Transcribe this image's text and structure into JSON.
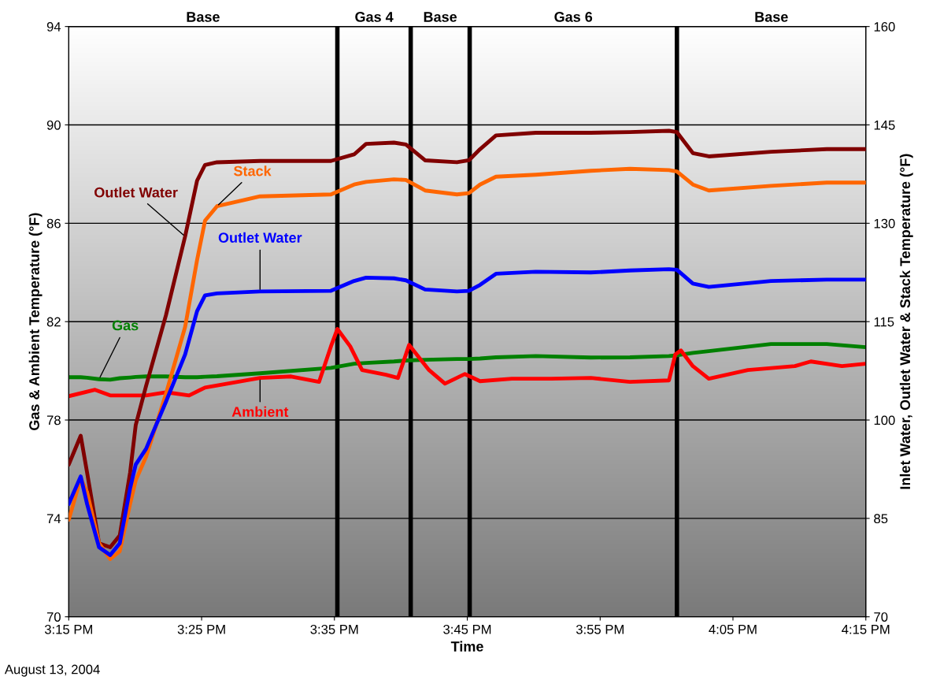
{
  "chart_data": {
    "type": "line",
    "xlabel": "Time",
    "ylabel": "Gas & Ambient Temperature (°F)",
    "y2label": "Inlet Water, Outlet Water & Stack Temperature (°F)",
    "x": [
      15.25,
      15.265,
      15.273,
      15.288,
      15.302,
      15.314,
      15.327,
      15.334,
      15.347,
      15.372,
      15.396,
      15.411,
      15.421,
      15.436,
      15.49,
      15.579,
      15.608,
      15.623,
      15.658,
      15.673,
      15.697,
      15.737,
      15.752,
      15.766,
      15.786,
      15.836,
      15.905,
      15.954,
      16.003,
      16.013,
      16.033,
      16.053,
      16.131,
      16.201,
      16.25
    ],
    "series": [
      {
        "name": "Outlet Water",
        "color": "#800000",
        "axis": "y2",
        "values": [
          93.2,
          97.6,
          92.0,
          81.2,
          80.6,
          82.4,
          92,
          99.2,
          105.2,
          116,
          128,
          136.5,
          138.9,
          139.3,
          139.5,
          139.5,
          140.5,
          142.1,
          142.3,
          142,
          139.6,
          139.3,
          139.6,
          141.3,
          143.4,
          143.8,
          143.8,
          143.9,
          144.1,
          143.9,
          140.7,
          140.2,
          140.9,
          141.3,
          141.3
        ]
      },
      {
        "name": "Stack",
        "color": "#ff6600",
        "axis": "y2",
        "values": [
          84.8,
          91.1,
          89.0,
          81.2,
          78.8,
          80.0,
          87.2,
          90.8,
          94.4,
          104,
          114.2,
          124.4,
          130.4,
          132.6,
          134.1,
          134.4,
          135.9,
          136.3,
          136.7,
          136.6,
          135,
          134.4,
          134.6,
          135.9,
          137.1,
          137.4,
          138,
          138.3,
          138.1,
          137.9,
          135.9,
          135,
          135.7,
          136.2,
          136.2
        ]
      },
      {
        "name": "Outlet Water",
        "color": "#0000ff",
        "axis": "y2",
        "values": [
          87.2,
          91.4,
          87.2,
          80.6,
          79.4,
          81.2,
          89.6,
          93.2,
          95.6,
          102.8,
          110,
          116.6,
          119,
          119.3,
          119.6,
          119.7,
          121.2,
          121.7,
          121.6,
          121.3,
          119.9,
          119.6,
          119.7,
          120.6,
          122.3,
          122.6,
          122.5,
          122.8,
          123,
          122.9,
          120.8,
          120.3,
          121.2,
          121.4,
          121.4
        ]
      },
      {
        "name": "Gas",
        "color": "#008000",
        "values": [
          79.74,
          79.74,
          79.72,
          79.66,
          79.64,
          79.7,
          79.73,
          79.75,
          79.77,
          79.77,
          79.74,
          79.74,
          79.76,
          79.78,
          79.9,
          80.12,
          80.29,
          80.32,
          80.38,
          80.42,
          80.45,
          80.48,
          80.48,
          80.5,
          80.55,
          80.6,
          80.54,
          80.55,
          80.6,
          80.63,
          80.73,
          80.8,
          81.09,
          81.09,
          80.96
        ]
      },
      {
        "name": "Ambient",
        "color": "#ff0000",
        "x": [
          15.25,
          15.283,
          15.302,
          15.347,
          15.372,
          15.401,
          15.421,
          15.49,
          15.529,
          15.564,
          15.579,
          15.587,
          15.603,
          15.618,
          15.648,
          15.663,
          15.677,
          15.702,
          15.722,
          15.747,
          15.766,
          15.806,
          15.855,
          15.905,
          15.954,
          16.003,
          16.011,
          16.018,
          16.033,
          16.053,
          16.102,
          16.161,
          16.181,
          16.22,
          16.25
        ],
        "values": [
          78.97,
          79.23,
          79.0,
          79.0,
          79.13,
          79.0,
          79.32,
          79.71,
          79.77,
          79.55,
          81.0,
          81.7,
          81.0,
          80.03,
          79.84,
          79.71,
          81.05,
          80.03,
          79.48,
          79.87,
          79.58,
          79.68,
          79.68,
          79.71,
          79.55,
          79.61,
          80.67,
          80.83,
          80.19,
          79.68,
          80.03,
          80.19,
          80.38,
          80.19,
          80.29
        ]
      }
    ],
    "xlim": [
      15.25,
      16.25
    ],
    "xticks": [
      {
        "value": 15.25,
        "label": "3:15 PM"
      },
      {
        "value": 15.4167,
        "label": "3:25 PM"
      },
      {
        "value": 15.5833,
        "label": "3:35 PM"
      },
      {
        "value": 15.75,
        "label": "3:45 PM"
      },
      {
        "value": 15.9167,
        "label": "3:55 PM"
      },
      {
        "value": 16.0833,
        "label": "4:05 PM"
      },
      {
        "value": 16.25,
        "label": "4:15 PM"
      }
    ],
    "ylim": [
      70,
      94
    ],
    "yticks": [
      70,
      74,
      78,
      82,
      86,
      90,
      94
    ],
    "y2lim": [
      70,
      160
    ],
    "y2ticks": [
      70,
      85,
      100,
      115,
      130,
      145,
      160
    ],
    "ref_lines": [
      {
        "axis": "x",
        "value": 15.587,
        "color": "#000000",
        "line_style": "solid"
      },
      {
        "axis": "x",
        "value": 15.679,
        "color": "#000000",
        "line_style": "solid"
      },
      {
        "axis": "x",
        "value": 15.753,
        "color": "#000000",
        "line_style": "solid"
      },
      {
        "axis": "x",
        "value": 16.013,
        "color": "#000000",
        "line_style": "solid"
      }
    ],
    "annotations": [
      "August 13, 2004",
      "Base",
      "Gas 4",
      "Base",
      "Gas 6",
      "Base"
    ],
    "grid": "y",
    "legend": false,
    "marker": "none",
    "line_style": "solid"
  }
}
